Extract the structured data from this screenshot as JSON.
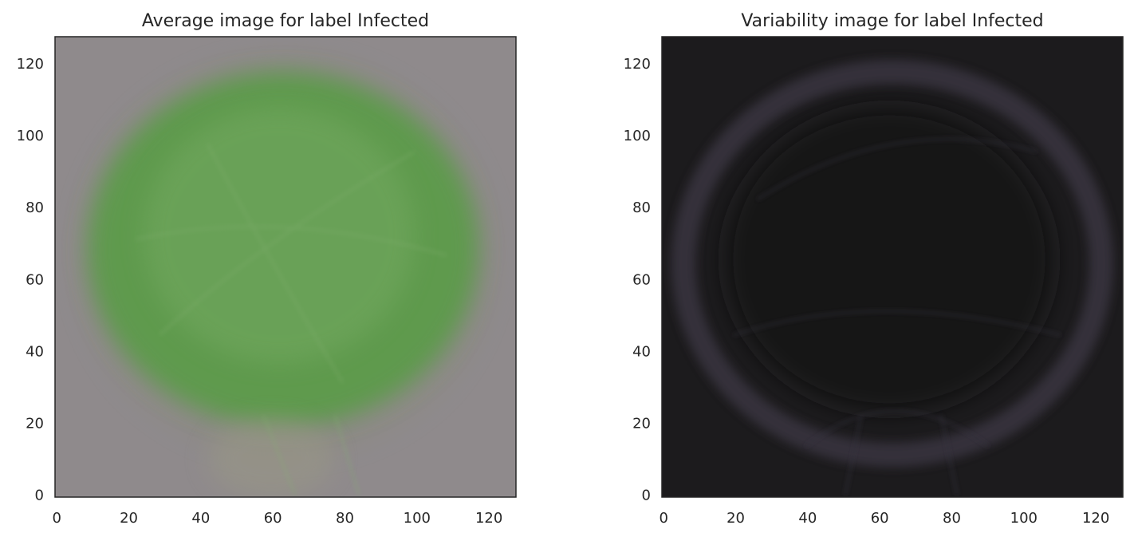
{
  "chart_data": [
    {
      "type": "heatmap",
      "title": "Average image for label Infected",
      "image_kind": "average",
      "xlim": [
        -0.5,
        127.5
      ],
      "ylim": [
        127.5,
        -0.5
      ],
      "xticks": [
        0,
        20,
        40,
        60,
        80,
        100,
        120
      ],
      "yticks": [
        0,
        20,
        40,
        60,
        80,
        100,
        120
      ],
      "colors": {
        "background": "#8f8a8c",
        "leaf": "#5e9a4e",
        "leaf_light": "#7fae6c"
      }
    },
    {
      "type": "heatmap",
      "title": "Variability image for label Infected",
      "image_kind": "variability",
      "xlim": [
        -0.5,
        127.5
      ],
      "ylim": [
        127.5,
        -0.5
      ],
      "xticks": [
        0,
        20,
        40,
        60,
        80,
        100,
        120
      ],
      "yticks": [
        0,
        20,
        40,
        60,
        80,
        100,
        120
      ],
      "colors": {
        "background": "#1c1b1d",
        "outline": "#3c3844",
        "center": "#161619"
      }
    }
  ]
}
